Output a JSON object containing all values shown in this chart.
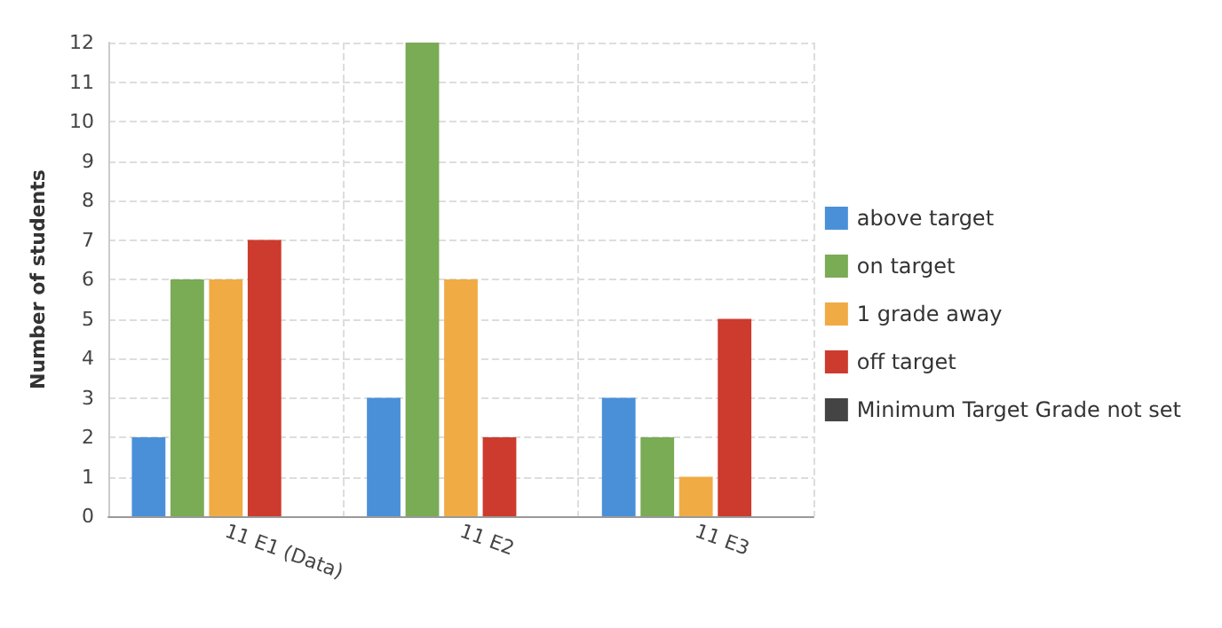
{
  "chart_data": {
    "type": "bar",
    "ylabel": "Number of students",
    "categories": [
      "11 E1 (Data)",
      "11 E2",
      "11 E3"
    ],
    "series": [
      {
        "name": "above target",
        "color": "#4a90d9",
        "values": [
          2,
          3,
          3
        ]
      },
      {
        "name": "on target",
        "color": "#7aab55",
        "values": [
          6,
          12,
          2
        ]
      },
      {
        "name": "1 grade away",
        "color": "#f0ab45",
        "values": [
          6,
          6,
          1
        ]
      },
      {
        "name": "off target",
        "color": "#cc3b2e",
        "values": [
          7,
          2,
          5
        ]
      },
      {
        "name": "Minimum Target Grade not set",
        "color": "#444444",
        "values": [
          0,
          0,
          0
        ]
      }
    ],
    "ylim": [
      0,
      12
    ],
    "yticks": [
      0,
      1,
      2,
      3,
      4,
      5,
      6,
      7,
      8,
      9,
      10,
      11,
      12
    ],
    "grid": true,
    "legend": "right"
  }
}
